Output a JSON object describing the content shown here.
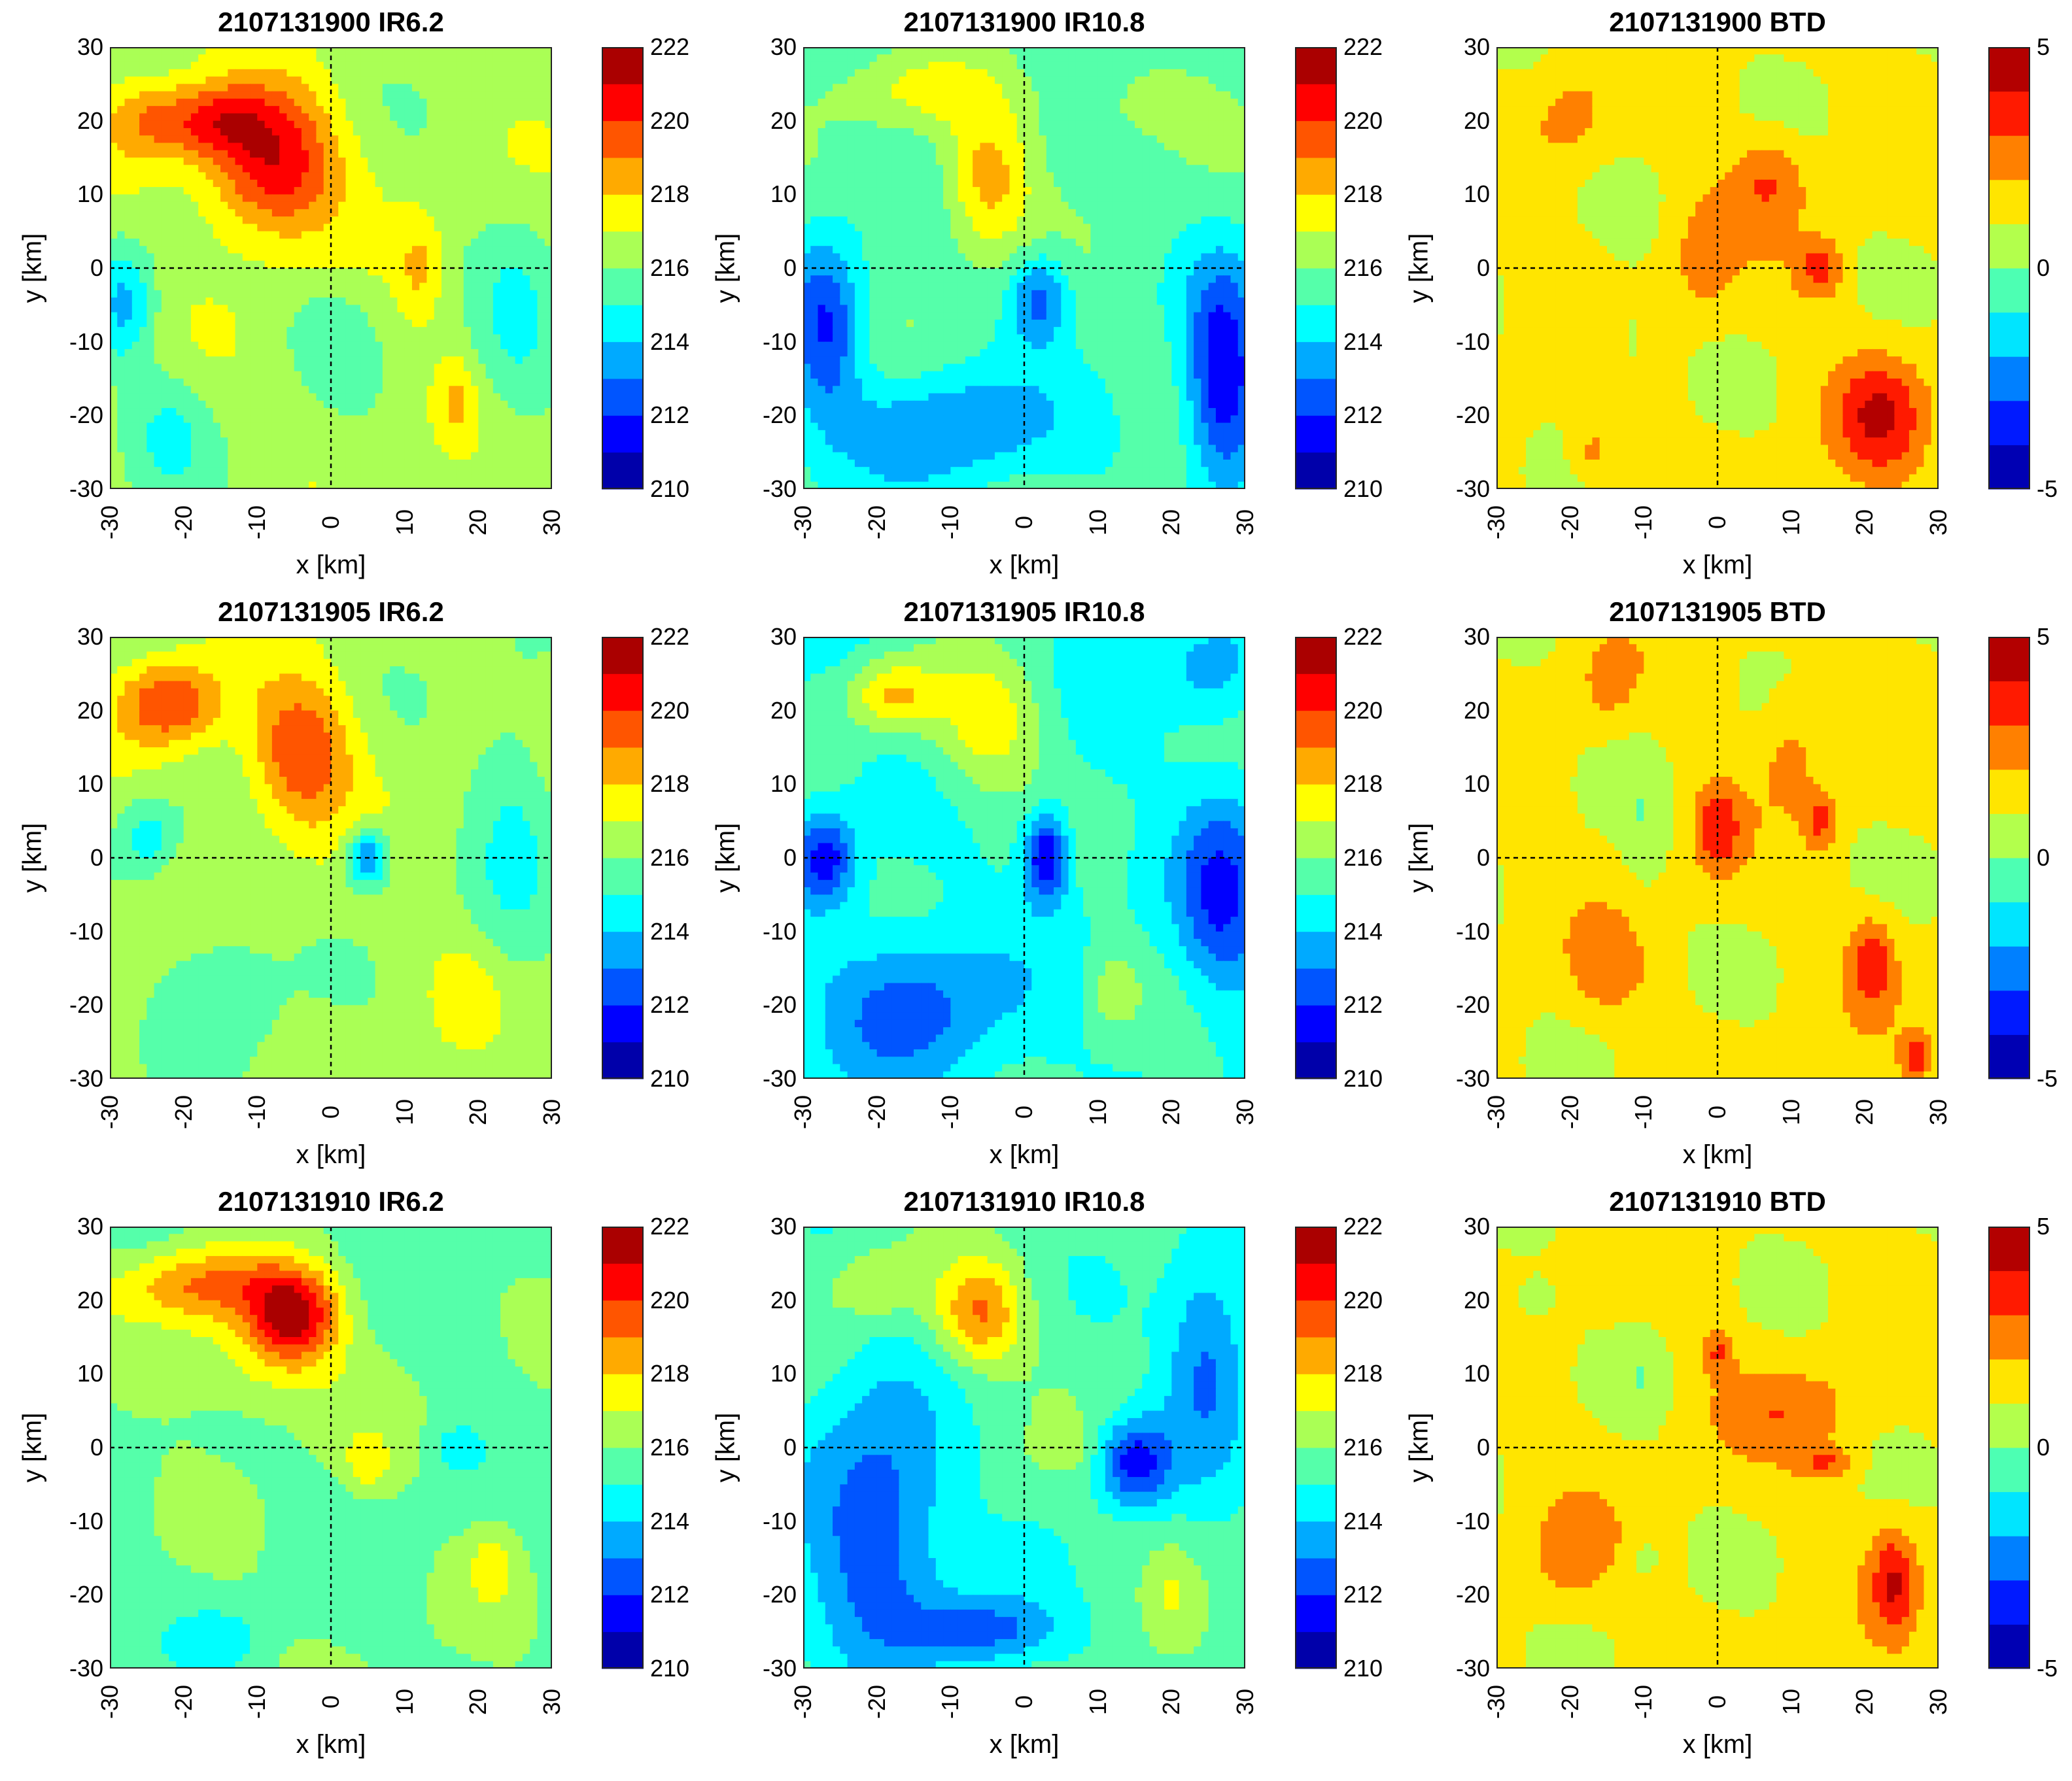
{
  "chart_data": [
    {
      "type": "contour",
      "title": "2107131900 IR6.2",
      "xlabel": "x [km]",
      "ylabel": "y [km]",
      "xlim": [
        -30,
        30
      ],
      "ylim": [
        -30,
        30
      ],
      "xticks": [
        "-30",
        "-20",
        "-10",
        "0",
        "10",
        "20",
        "30"
      ],
      "yticks": [
        "30",
        "20",
        "10",
        "0",
        "-10",
        "-20",
        "-30"
      ],
      "colorbar": {
        "min": 210,
        "max": 222,
        "levels": 12,
        "ticks": [
          "222",
          "220",
          "218",
          "216",
          "214",
          "212",
          "210"
        ]
      },
      "background": 216.5,
      "features": [
        {
          "x": -8,
          "y": 14,
          "value": 221,
          "rx": 9,
          "ry": 10
        },
        {
          "x": -17,
          "y": 20,
          "value": 219.5,
          "rx": 8,
          "ry": 5
        },
        {
          "x": -26,
          "y": 20,
          "value": 218,
          "rx": 5,
          "ry": 6
        },
        {
          "x": 12,
          "y": 0,
          "value": 218,
          "rx": 3,
          "ry": 7
        },
        {
          "x": 17,
          "y": -18,
          "value": 218,
          "rx": 3,
          "ry": 6
        },
        {
          "x": -28,
          "y": -5,
          "value": 214,
          "rx": 4,
          "ry": 8
        },
        {
          "x": 25,
          "y": -10,
          "value": 215,
          "rx": 6,
          "ry": 14
        },
        {
          "x": 0,
          "y": -8,
          "value": 215.5,
          "rx": 6,
          "ry": 6
        },
        {
          "x": -22,
          "y": -22,
          "value": 215,
          "rx": 6,
          "ry": 8
        }
      ]
    },
    {
      "type": "contour",
      "title": "2107131900 IR10.8",
      "xlabel": "x [km]",
      "ylabel": "y [km]",
      "xlim": [
        -30,
        30
      ],
      "ylim": [
        -30,
        30
      ],
      "xticks": [
        "-30",
        "-20",
        "-10",
        "0",
        "10",
        "20",
        "30"
      ],
      "yticks": [
        "30",
        "20",
        "10",
        "0",
        "-10",
        "-20",
        "-30"
      ],
      "colorbar": {
        "min": 210,
        "max": 222,
        "levels": 12,
        "ticks": [
          "222",
          "220",
          "218",
          "216",
          "214",
          "212",
          "210"
        ]
      },
      "background": 215.5,
      "features": [
        {
          "x": -5,
          "y": 12,
          "value": 218.5,
          "rx": 6,
          "ry": 10
        },
        {
          "x": -15,
          "y": 24,
          "value": 217,
          "rx": 12,
          "ry": 5
        },
        {
          "x": 15,
          "y": 22,
          "value": 216.5,
          "rx": 12,
          "ry": 6
        },
        {
          "x": -27,
          "y": -8,
          "value": 212,
          "rx": 5,
          "ry": 12
        },
        {
          "x": 2,
          "y": -4,
          "value": 212.5,
          "rx": 4,
          "ry": 6
        },
        {
          "x": 27,
          "y": -15,
          "value": 211,
          "rx": 5,
          "ry": 15
        },
        {
          "x": -10,
          "y": -22,
          "value": 213,
          "rx": 14,
          "ry": 8
        },
        {
          "x": 12,
          "y": -22,
          "value": 215,
          "rx": 8,
          "ry": 8
        }
      ]
    },
    {
      "type": "contour",
      "title": "2107131900 BTD",
      "xlabel": "x [km]",
      "ylabel": "y [km]",
      "xlim": [
        -30,
        30
      ],
      "ylim": [
        -30,
        30
      ],
      "xticks": [
        "-30",
        "-20",
        "-10",
        "0",
        "10",
        "20",
        "30"
      ],
      "yticks": [
        "30",
        "20",
        "10",
        "0",
        "-10",
        "-20",
        "-30"
      ],
      "colorbar": {
        "min": -5,
        "max": 5,
        "levels": 10,
        "ticks": [
          "5",
          "0",
          "-5"
        ]
      },
      "background": 1.3,
      "features": [
        {
          "x": 22,
          "y": -20,
          "value": 3.8,
          "rx": 6,
          "ry": 8
        },
        {
          "x": 14,
          "y": 0,
          "value": 3.5,
          "rx": 3,
          "ry": 4
        },
        {
          "x": 7,
          "y": 12,
          "value": 3.0,
          "rx": 5,
          "ry": 6
        },
        {
          "x": -2,
          "y": 2,
          "value": 2.5,
          "rx": 4,
          "ry": 8
        },
        {
          "x": -20,
          "y": 20,
          "value": 2.4,
          "rx": 5,
          "ry": 6
        },
        {
          "x": -17,
          "y": -25,
          "value": 2.6,
          "rx": 3,
          "ry": 4
        },
        {
          "x": -12,
          "y": -10,
          "value": 0.5,
          "rx": 3,
          "ry": 8
        },
        {
          "x": 25,
          "y": 15,
          "value": 0.5,
          "rx": 3,
          "ry": 4
        }
      ]
    },
    {
      "type": "contour",
      "title": "2107131905 IR6.2",
      "xlabel": "x [km]",
      "ylabel": "y [km]",
      "xlim": [
        -30,
        30
      ],
      "ylim": [
        -30,
        30
      ],
      "xticks": [
        "-30",
        "-20",
        "-10",
        "0",
        "10",
        "20",
        "30"
      ],
      "yticks": [
        "30",
        "20",
        "10",
        "0",
        "-10",
        "-20",
        "-30"
      ],
      "colorbar": {
        "min": 210,
        "max": 222,
        "levels": 12,
        "ticks": [
          "222",
          "220",
          "218",
          "216",
          "214",
          "212",
          "210"
        ]
      },
      "background": 216.5,
      "features": [
        {
          "x": -22,
          "y": 21,
          "value": 220,
          "rx": 7,
          "ry": 6
        },
        {
          "x": -4,
          "y": 14,
          "value": 220,
          "rx": 7,
          "ry": 10
        },
        {
          "x": 5,
          "y": 0,
          "value": 212.5,
          "rx": 3,
          "ry": 4
        },
        {
          "x": -25,
          "y": 3,
          "value": 214.5,
          "rx": 4,
          "ry": 5
        },
        {
          "x": 25,
          "y": 5,
          "value": 215,
          "rx": 6,
          "ry": 20
        },
        {
          "x": -15,
          "y": -18,
          "value": 215,
          "rx": 8,
          "ry": 10
        },
        {
          "x": 18,
          "y": -18,
          "value": 217.5,
          "rx": 4,
          "ry": 6
        }
      ]
    },
    {
      "type": "contour",
      "title": "2107131905 IR10.8",
      "xlabel": "x [km]",
      "ylabel": "y [km]",
      "xlim": [
        -30,
        30
      ],
      "ylim": [
        -30,
        30
      ],
      "xticks": [
        "-30",
        "-20",
        "-10",
        "0",
        "10",
        "20",
        "30"
      ],
      "yticks": [
        "30",
        "20",
        "10",
        "0",
        "-10",
        "-20",
        "-30"
      ],
      "colorbar": {
        "min": 210,
        "max": 222,
        "levels": 12,
        "ticks": [
          "222",
          "220",
          "218",
          "216",
          "214",
          "212",
          "210"
        ]
      },
      "background": 215,
      "features": [
        {
          "x": -18,
          "y": 22,
          "value": 218,
          "rx": 6,
          "ry": 5
        },
        {
          "x": -5,
          "y": 18,
          "value": 217.5,
          "rx": 8,
          "ry": 10
        },
        {
          "x": 3,
          "y": 0,
          "value": 210.5,
          "rx": 3,
          "ry": 6
        },
        {
          "x": -27,
          "y": 0,
          "value": 211.5,
          "rx": 4,
          "ry": 6
        },
        {
          "x": -15,
          "y": -20,
          "value": 212.5,
          "rx": 12,
          "ry": 10
        },
        {
          "x": 27,
          "y": -5,
          "value": 212,
          "rx": 6,
          "ry": 14
        },
        {
          "x": 12,
          "y": -18,
          "value": 216.5,
          "rx": 4,
          "ry": 6
        },
        {
          "x": 25,
          "y": 25,
          "value": 213.5,
          "rx": 6,
          "ry": 6
        }
      ]
    },
    {
      "type": "contour",
      "title": "2107131905 BTD",
      "xlabel": "x [km]",
      "ylabel": "y [km]",
      "xlim": [
        -30,
        30
      ],
      "ylim": [
        -30,
        30
      ],
      "xticks": [
        "-30",
        "-20",
        "-10",
        "0",
        "10",
        "20",
        "30"
      ],
      "yticks": [
        "30",
        "20",
        "10",
        "0",
        "-10",
        "-20",
        "-30"
      ],
      "colorbar": {
        "min": -5,
        "max": 5,
        "levels": 10,
        "ticks": [
          "5",
          "0",
          "-5"
        ]
      },
      "background": 1.3,
      "features": [
        {
          "x": 0,
          "y": 4,
          "value": 3.6,
          "rx": 3,
          "ry": 6
        },
        {
          "x": 21,
          "y": -14,
          "value": 3.6,
          "rx": 3,
          "ry": 6
        },
        {
          "x": 14,
          "y": 5,
          "value": 3.2,
          "rx": 2,
          "ry": 4
        },
        {
          "x": 27,
          "y": -27,
          "value": 3.5,
          "rx": 2,
          "ry": 3
        },
        {
          "x": -15,
          "y": -15,
          "value": 2.5,
          "rx": 5,
          "ry": 6
        },
        {
          "x": -15,
          "y": 24,
          "value": 2.5,
          "rx": 3,
          "ry": 5
        },
        {
          "x": 10,
          "y": 15,
          "value": 2.5,
          "rx": 4,
          "ry": 8
        },
        {
          "x": -10,
          "y": 5,
          "value": 0.5,
          "rx": 3,
          "ry": 10
        },
        {
          "x": 8,
          "y": 0,
          "value": 0.5,
          "rx": 2,
          "ry": 5
        }
      ]
    },
    {
      "type": "contour",
      "title": "2107131910 IR6.2",
      "xlabel": "x [km]",
      "ylabel": "y [km]",
      "xlim": [
        -30,
        30
      ],
      "ylim": [
        -30,
        30
      ],
      "xticks": [
        "-30",
        "-20",
        "-10",
        "0",
        "10",
        "20",
        "30"
      ],
      "yticks": [
        "30",
        "20",
        "10",
        "0",
        "-10",
        "-20",
        "-30"
      ],
      "colorbar": {
        "min": 210,
        "max": 222,
        "levels": 12,
        "ticks": [
          "222",
          "220",
          "218",
          "216",
          "214",
          "212",
          "210"
        ]
      },
      "background": 215.8,
      "features": [
        {
          "x": -5,
          "y": 18,
          "value": 220.5,
          "rx": 6,
          "ry": 6
        },
        {
          "x": -17,
          "y": 22,
          "value": 219,
          "rx": 12,
          "ry": 5
        },
        {
          "x": -10,
          "y": 12,
          "value": 217.5,
          "rx": 12,
          "ry": 8
        },
        {
          "x": 17,
          "y": 0,
          "value": 214.5,
          "rx": 3,
          "ry": 3
        },
        {
          "x": -15,
          "y": -26,
          "value": 214.5,
          "rx": 6,
          "ry": 4
        },
        {
          "x": 22,
          "y": -16,
          "value": 217.5,
          "rx": 3,
          "ry": 5
        },
        {
          "x": 5,
          "y": -2,
          "value": 217.5,
          "rx": 3,
          "ry": 4
        },
        {
          "x": 22,
          "y": 15,
          "value": 215.5,
          "rx": 6,
          "ry": 10
        }
      ]
    },
    {
      "type": "contour",
      "title": "2107131910 IR10.8",
      "xlabel": "x [km]",
      "ylabel": "y [km]",
      "xlim": [
        -30,
        30
      ],
      "ylim": [
        -30,
        30
      ],
      "xticks": [
        "-30",
        "-20",
        "-10",
        "0",
        "10",
        "20",
        "30"
      ],
      "yticks": [
        "30",
        "20",
        "10",
        "0",
        "-10",
        "-20",
        "-30"
      ],
      "colorbar": {
        "min": 210,
        "max": 222,
        "levels": 12,
        "ticks": [
          "222",
          "220",
          "218",
          "216",
          "214",
          "212",
          "210"
        ]
      },
      "background": 215.5,
      "features": [
        {
          "x": -6,
          "y": 18,
          "value": 219,
          "rx": 6,
          "ry": 7
        },
        {
          "x": -20,
          "y": 22,
          "value": 217,
          "rx": 6,
          "ry": 5
        },
        {
          "x": 15,
          "y": -2,
          "value": 211.5,
          "rx": 5,
          "ry": 6
        },
        {
          "x": -20,
          "y": -10,
          "value": 212,
          "rx": 10,
          "ry": 18
        },
        {
          "x": -5,
          "y": -25,
          "value": 212.5,
          "rx": 10,
          "ry": 5
        },
        {
          "x": 25,
          "y": 12,
          "value": 212.5,
          "rx": 6,
          "ry": 14
        },
        {
          "x": 20,
          "y": -20,
          "value": 216.5,
          "rx": 3,
          "ry": 7
        },
        {
          "x": 5,
          "y": 0,
          "value": 216.5,
          "rx": 4,
          "ry": 3
        }
      ]
    },
    {
      "type": "contour",
      "title": "2107131910 BTD",
      "xlabel": "x [km]",
      "ylabel": "y [km]",
      "xlim": [
        -30,
        30
      ],
      "ylim": [
        -30,
        30
      ],
      "xticks": [
        "-30",
        "-20",
        "-10",
        "0",
        "10",
        "20",
        "30"
      ],
      "yticks": [
        "30",
        "20",
        "10",
        "0",
        "-10",
        "-20",
        "-30"
      ],
      "colorbar": {
        "min": -5,
        "max": 5,
        "levels": 10,
        "ticks": [
          "5",
          "0",
          "-5"
        ]
      },
      "background": 1.3,
      "features": [
        {
          "x": 24,
          "y": -18,
          "value": 3.8,
          "rx": 3,
          "ry": 7
        },
        {
          "x": 15,
          "y": -2,
          "value": 3.0,
          "rx": 4,
          "ry": 2
        },
        {
          "x": 0,
          "y": 13,
          "value": 3.0,
          "rx": 2,
          "ry": 3
        },
        {
          "x": 10,
          "y": 5,
          "value": 2.5,
          "rx": 10,
          "ry": 6
        },
        {
          "x": -20,
          "y": -15,
          "value": 2.5,
          "rx": 5,
          "ry": 7
        },
        {
          "x": -10,
          "y": 10,
          "value": 0.5,
          "rx": 3,
          "ry": 6
        },
        {
          "x": -25,
          "y": 20,
          "value": 0.5,
          "rx": 3,
          "ry": 3
        },
        {
          "x": -10,
          "y": -15,
          "value": 0.5,
          "rx": 2,
          "ry": 3
        }
      ]
    }
  ]
}
